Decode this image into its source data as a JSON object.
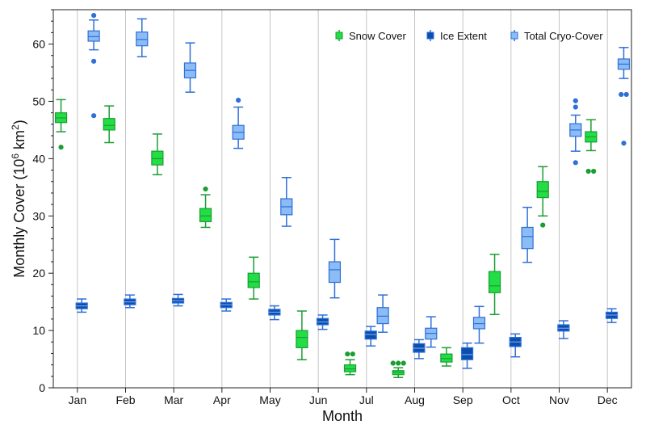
{
  "chart_data": {
    "type": "box",
    "xlabel": "Month",
    "ylabel_main": "Monthly Cover (10",
    "ylabel_sup1": "6",
    "ylabel_mid": " km",
    "ylabel_sup2": "2",
    "ylabel_end": ")",
    "ylim": [
      0,
      66
    ],
    "yticks": [
      0,
      10,
      20,
      30,
      40,
      50,
      60
    ],
    "grid": "vertical lines at month centres",
    "legend_position": "top-right",
    "categories": [
      "Jan",
      "Feb",
      "Mar",
      "Apr",
      "May",
      "Jun",
      "Jul",
      "Aug",
      "Sep",
      "Oct",
      "Nov",
      "Dec"
    ],
    "series": [
      {
        "name": "Snow Cover",
        "color_fill": "#22dd44",
        "color_line": "#1a9e33",
        "boxes": [
          {
            "whislo": 44.7,
            "q1": 46.3,
            "med": 47.1,
            "q3": 48.0,
            "whishi": 50.3,
            "fliers": [
              42.0
            ]
          },
          {
            "whislo": 42.8,
            "q1": 45.0,
            "med": 45.8,
            "q3": 47.0,
            "whishi": 49.2,
            "fliers": []
          },
          {
            "whislo": 37.2,
            "q1": 38.9,
            "med": 40.0,
            "q3": 41.3,
            "whishi": 44.3,
            "fliers": []
          },
          {
            "whislo": 28.0,
            "q1": 29.0,
            "med": 30.0,
            "q3": 31.3,
            "whishi": 33.7,
            "fliers": [
              34.7
            ]
          },
          {
            "whislo": 15.5,
            "q1": 17.5,
            "med": 18.5,
            "q3": 20.0,
            "whishi": 22.8,
            "fliers": []
          },
          {
            "whislo": 4.9,
            "q1": 7.0,
            "med": 8.8,
            "q3": 10.0,
            "whishi": 13.4,
            "fliers": []
          },
          {
            "whislo": 2.3,
            "q1": 2.8,
            "med": 3.3,
            "q3": 4.0,
            "whishi": 4.9,
            "fliers": [
              5.9,
              5.9
            ]
          },
          {
            "whislo": 1.8,
            "q1": 2.3,
            "med": 2.7,
            "q3": 3.0,
            "whishi": 3.5,
            "fliers": [
              4.3,
              4.3,
              4.3
            ]
          },
          {
            "whislo": 3.8,
            "q1": 4.5,
            "med": 5.1,
            "q3": 5.9,
            "whishi": 7.0,
            "fliers": []
          },
          {
            "whislo": 12.8,
            "q1": 16.6,
            "med": 17.8,
            "q3": 20.3,
            "whishi": 23.3,
            "fliers": []
          },
          {
            "whislo": 30.0,
            "q1": 33.2,
            "med": 34.3,
            "q3": 36.0,
            "whishi": 38.6,
            "fliers": [
              28.4
            ]
          },
          {
            "whislo": 41.4,
            "q1": 42.9,
            "med": 43.8,
            "q3": 44.7,
            "whishi": 46.8,
            "fliers": [
              37.8,
              37.8
            ]
          }
        ]
      },
      {
        "name": "Ice Extent",
        "color_fill": "#0a4fb0",
        "color_line": "#2f6fd8",
        "boxes": [
          {
            "whislo": 13.2,
            "q1": 13.8,
            "med": 14.3,
            "q3": 14.8,
            "whishi": 15.5,
            "fliers": []
          },
          {
            "whislo": 14.0,
            "q1": 14.5,
            "med": 15.0,
            "q3": 15.5,
            "whishi": 16.2,
            "fliers": []
          },
          {
            "whislo": 14.3,
            "q1": 14.8,
            "med": 15.2,
            "q3": 15.6,
            "whishi": 16.3,
            "fliers": []
          },
          {
            "whislo": 13.4,
            "q1": 14.0,
            "med": 14.5,
            "q3": 14.9,
            "whishi": 15.5,
            "fliers": []
          },
          {
            "whislo": 11.9,
            "q1": 12.7,
            "med": 13.2,
            "q3": 13.7,
            "whishi": 14.3,
            "fliers": []
          },
          {
            "whislo": 10.2,
            "q1": 11.0,
            "med": 11.5,
            "q3": 12.1,
            "whishi": 12.7,
            "fliers": []
          },
          {
            "whislo": 7.3,
            "q1": 8.5,
            "med": 9.3,
            "q3": 9.9,
            "whishi": 10.7,
            "fliers": []
          },
          {
            "whislo": 5.1,
            "q1": 6.2,
            "med": 6.9,
            "q3": 7.7,
            "whishi": 8.4,
            "fliers": []
          },
          {
            "whislo": 3.4,
            "q1": 4.9,
            "med": 5.8,
            "q3": 7.0,
            "whishi": 7.8,
            "fliers": []
          },
          {
            "whislo": 5.4,
            "q1": 7.2,
            "med": 8.0,
            "q3": 8.8,
            "whishi": 9.4,
            "fliers": []
          },
          {
            "whislo": 8.6,
            "q1": 9.9,
            "med": 10.4,
            "q3": 11.0,
            "whishi": 11.7,
            "fliers": []
          },
          {
            "whislo": 11.4,
            "q1": 12.1,
            "med": 12.7,
            "q3": 13.2,
            "whishi": 13.8,
            "fliers": []
          }
        ]
      },
      {
        "name": "Total Cryo-Cover",
        "color_fill": "#8cbcf6",
        "color_line": "#2f6fd8",
        "boxes": [
          {
            "whislo": 59.0,
            "q1": 60.5,
            "med": 61.3,
            "q3": 62.3,
            "whishi": 64.2,
            "fliers": [
              65.0,
              57.0,
              47.5
            ]
          },
          {
            "whislo": 57.8,
            "q1": 59.7,
            "med": 60.8,
            "q3": 62.1,
            "whishi": 64.4,
            "fliers": []
          },
          {
            "whislo": 51.6,
            "q1": 54.1,
            "med": 55.4,
            "q3": 56.7,
            "whishi": 60.2,
            "fliers": []
          },
          {
            "whislo": 41.8,
            "q1": 43.4,
            "med": 44.6,
            "q3": 45.8,
            "whishi": 49.0,
            "fliers": [
              50.2
            ]
          },
          {
            "whislo": 28.2,
            "q1": 30.2,
            "med": 31.6,
            "q3": 33.0,
            "whishi": 36.7,
            "fliers": []
          },
          {
            "whislo": 15.7,
            "q1": 18.4,
            "med": 20.6,
            "q3": 22.0,
            "whishi": 25.9,
            "fliers": []
          },
          {
            "whislo": 9.7,
            "q1": 11.2,
            "med": 12.5,
            "q3": 14.0,
            "whishi": 16.2,
            "fliers": []
          },
          {
            "whislo": 7.1,
            "q1": 8.5,
            "med": 9.5,
            "q3": 10.4,
            "whishi": 12.4,
            "fliers": []
          },
          {
            "whislo": 7.8,
            "q1": 10.3,
            "med": 11.2,
            "q3": 12.3,
            "whishi": 14.2,
            "fliers": []
          },
          {
            "whislo": 21.9,
            "q1": 24.3,
            "med": 26.4,
            "q3": 28.0,
            "whishi": 31.5,
            "fliers": []
          },
          {
            "whislo": 41.3,
            "q1": 43.9,
            "med": 45.0,
            "q3": 46.1,
            "whishi": 47.6,
            "fliers": [
              50.1,
              49.0,
              39.3
            ]
          },
          {
            "whislo": 54.0,
            "q1": 55.6,
            "med": 56.5,
            "q3": 57.4,
            "whishi": 59.4,
            "fliers": [
              51.2,
              51.2,
              42.7
            ]
          }
        ]
      }
    ]
  }
}
